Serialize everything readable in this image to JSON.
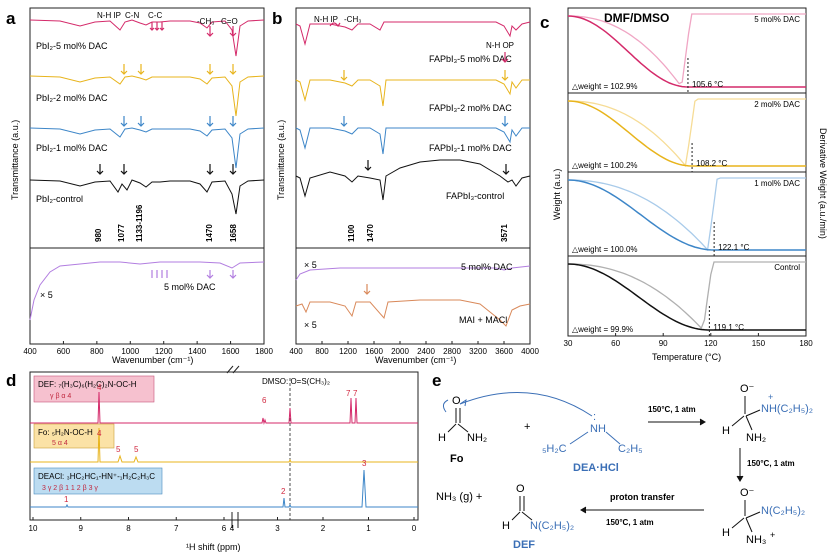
{
  "panels": {
    "a": {
      "letter": "a",
      "ylabel": "Transmittance (a.u.)",
      "xlabel": "Wavenumber (cm⁻¹)",
      "xlim": [
        400,
        1800
      ],
      "ticks": [
        "400",
        "600",
        "800",
        "1000",
        "1200",
        "1400",
        "1600",
        "1800"
      ],
      "series": [
        "PbI₂-5 mol% DAC",
        "PbI₂-2 mol% DAC",
        "PbI₂-1 mol% DAC",
        "PbI₂-control"
      ],
      "bands": [
        "N-H IP",
        "C-N",
        "C-C",
        "-CH₃",
        "C=O"
      ],
      "peaks": [
        "980",
        "1077",
        "1133-1196",
        "1470",
        "1658"
      ],
      "lower_label": "5 mol% DAC",
      "scale": "× 5"
    },
    "b": {
      "letter": "b",
      "ylabel": "Transmittance (a.u.)",
      "xlabel": "Wavenumber (cm⁻¹)",
      "xlim": [
        400,
        4000
      ],
      "ticks": [
        "400",
        "800",
        "1200",
        "1600",
        "2000",
        "2400",
        "2800",
        "3200",
        "3600",
        "4000"
      ],
      "series": [
        "FAPbI₃-5 mol% DAC",
        "FAPbI₃-2 mol% DAC",
        "FAPbI₃-1 mol% DAC",
        "FAPbI₃-control"
      ],
      "bands": [
        "N-H IP",
        "-CH₃",
        "N-H OP"
      ],
      "peaks": [
        "1100",
        "1470",
        "3571"
      ],
      "lower_labels": [
        "5 mol% DAC",
        "MAI + MACl"
      ],
      "scale": [
        "× 5",
        "× 5"
      ]
    },
    "c": {
      "letter": "c",
      "title": "DMF/DMSO",
      "ylabel": "Weight (a.u.)",
      "ylabel_right": "Derivative Weight (a.u./min)",
      "xlabel": "Temperature (°C)",
      "xlim": [
        30,
        180
      ],
      "ticks": [
        "30",
        "60",
        "90",
        "120",
        "150",
        "180"
      ],
      "subpanels": [
        {
          "label": "5 mol% DAC",
          "weight": "△weight = 102.9%",
          "temp": "105.6 °C",
          "t": 105.6,
          "color": "#d42a6a",
          "light": "#f0a6c4"
        },
        {
          "label": "2 mol% DAC",
          "weight": "△weight = 100.2%",
          "temp": "108.2 °C",
          "t": 108.2,
          "color": "#e8b41c",
          "light": "#f6dc96"
        },
        {
          "label": "1 mol% DAC",
          "weight": "△weight = 100.0%",
          "temp": "122.1 °C",
          "t": 122.1,
          "color": "#3d86c8",
          "light": "#a9cbea"
        },
        {
          "label": "Control",
          "weight": "△weight = 99.9%",
          "temp": "119.1 °C",
          "t": 119.1,
          "color": "#111111",
          "light": "#b0b0b0"
        }
      ]
    },
    "d": {
      "letter": "d",
      "xlabel": "¹H shift (ppm)",
      "ticks": [
        "10",
        "9",
        "8",
        "7",
        "6",
        "4",
        "3",
        "2",
        "1",
        "0"
      ],
      "dmso": "DMSO: O=S(CH₃)₂",
      "def_formula": "DEF: ₇(H₃C)₆(H₂C)₂N-OC-H",
      "def_sub": "γ  β        α  4",
      "fo_formula": "Fo: ₅H₂N-OC-H",
      "fo_sub": "5       α  4",
      "deacl_formula": "DEACl: ₃HC₂HC₁-HN⁺-₁H₂C₂H₃C",
      "deacl_sub": "3 γ  2 β  1         1  2 β  3 γ",
      "peak_labels": [
        "4",
        "6",
        "7",
        "7",
        "4",
        "5",
        "5",
        "1",
        "2",
        "3"
      ]
    },
    "e": {
      "letter": "e",
      "fo": "Fo",
      "dea": "DEA·HCl",
      "cond": "150°C, 1 atm",
      "proton": "proton transfer",
      "nh3": "NH₃ (g) +",
      "def": "DEF",
      "plus": "+",
      "h": "H",
      "o": "O",
      "ominus": "O⁻",
      "nh2": "NH₂",
      "nh": "NH",
      "nh3b": "NH₃",
      "h3c": "₅H₂C",
      "c2h5": "C₂H₅",
      "amine": "NH(C₂H₅)₂",
      "namine": "N(C₂H₅)₂",
      "charge": "+",
      "dots": ":"
    }
  },
  "colors": {
    "pink": "#d42a6a",
    "yellow": "#e8b41c",
    "blue": "#3d86c8",
    "black": "#111111",
    "purple": "#b27ee0",
    "orange": "#d9895a",
    "blue_text": "#3b6fb6",
    "box_def": "#f6c1cf",
    "box_fo": "#fbe2a6",
    "box_deacl": "#bcdcf1"
  }
}
